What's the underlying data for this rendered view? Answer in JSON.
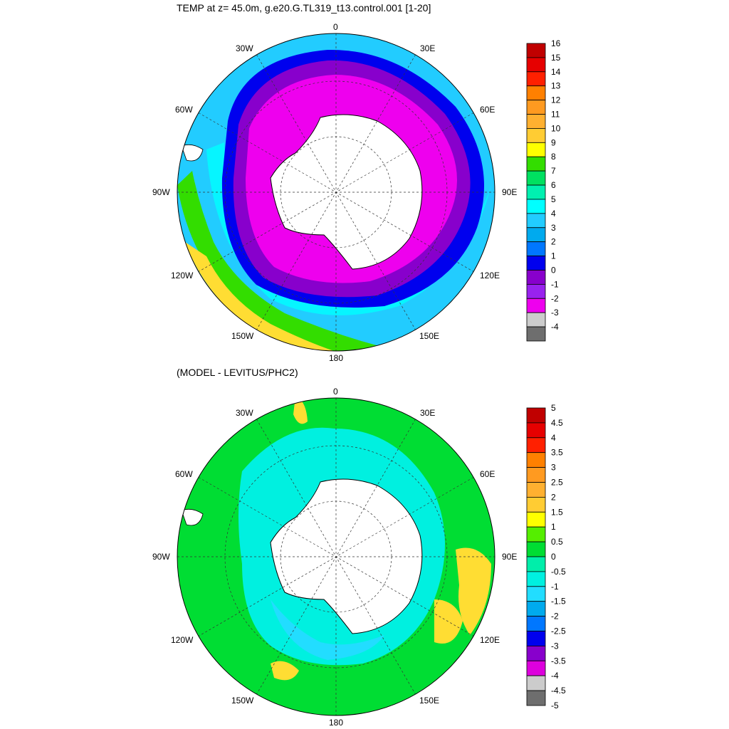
{
  "top_panel": {
    "title": "TEMP at z=  45.0m, g.e20.G.TL319_t13.control.001 [1-20]",
    "colorbar": {
      "levels": [
        "16",
        "15",
        "14",
        "13",
        "12",
        "11",
        "10",
        "9",
        "8",
        "7",
        "6",
        "5",
        "4",
        "3",
        "2",
        "1",
        "0",
        "-1",
        "-2",
        "-3",
        "-4"
      ],
      "colors": [
        "#c00000",
        "#e60000",
        "#ff2000",
        "#ff8000",
        "#ff9a20",
        "#ffb030",
        "#ffcc33",
        "#ffff00",
        "#33dd00",
        "#00e060",
        "#00f0b0",
        "#00ffff",
        "#22ccff",
        "#00aaee",
        "#0077ff",
        "#0000ee",
        "#8800cc",
        "#9922ee",
        "#ee00ee",
        "#cccccc",
        "#6e6e6e"
      ]
    }
  },
  "bottom_panel": {
    "title": "(MODEL - LEVITUS/PHC2)",
    "colorbar": {
      "levels": [
        "5",
        "4.5",
        "4",
        "3.5",
        "3",
        "2.5",
        "2",
        "1.5",
        "1",
        "0.5",
        "0",
        "-0.5",
        "-1",
        "-1.5",
        "-2",
        "-2.5",
        "-3",
        "-3.5",
        "-4",
        "-4.5",
        "-5"
      ],
      "colors": [
        "#c00000",
        "#e60000",
        "#ff2000",
        "#ff8000",
        "#ff9a20",
        "#ffb030",
        "#ffcc33",
        "#ffff00",
        "#55ee00",
        "#00dd33",
        "#00eeaa",
        "#00f0e0",
        "#22ddff",
        "#00aaee",
        "#0077ff",
        "#0000ee",
        "#8800cc",
        "#dd00dd",
        "#cccccc",
        "#6e6e6e"
      ]
    }
  },
  "longitude_labels": {
    "n0": "0",
    "e30": "30E",
    "e60": "60E",
    "e90": "90E",
    "e120": "120E",
    "e150": "150E",
    "s180": "180",
    "w150": "150W",
    "w120": "120W",
    "w90": "90W",
    "w60": "60W",
    "w30": "30W"
  },
  "colors": {
    "top_outer_ocean": "#22ccff",
    "top_mid_ocean": "#0000ee",
    "top_inner_ocean": "#ee00ee",
    "top_purple_band": "#8800cc",
    "top_warm_edge": "#ffdd33",
    "top_green_edge": "#33dd00",
    "bottom_base": "#00f0e0",
    "bottom_green": "#00dd33",
    "bottom_warm": "#ffdd33",
    "land": "#ffffff"
  }
}
